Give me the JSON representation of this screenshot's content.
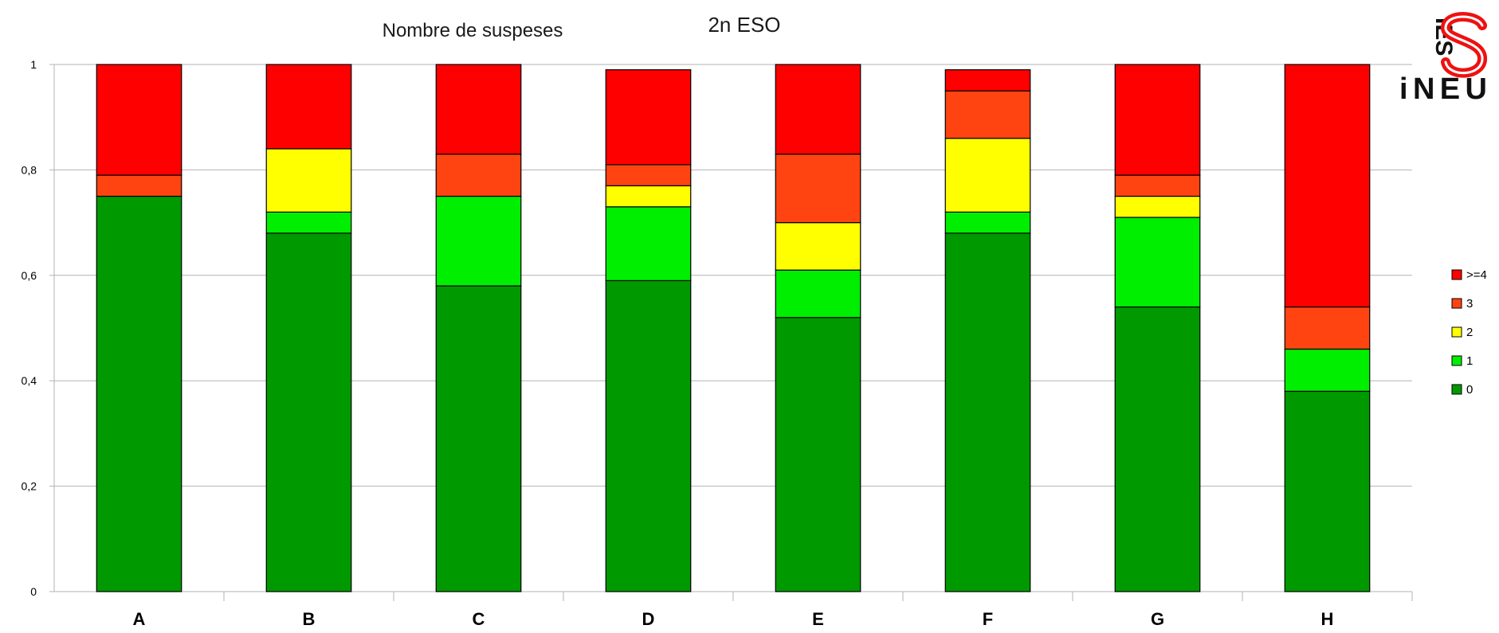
{
  "chart_data": {
    "type": "bar",
    "stacked": true,
    "title": "Nombre de suspeses",
    "subtitle": "2n ESO",
    "categories": [
      "A",
      "B",
      "C",
      "D",
      "E",
      "F",
      "G",
      "H"
    ],
    "series": [
      {
        "name": "0",
        "color": "#009900",
        "values": [
          0.75,
          0.68,
          0.58,
          0.59,
          0.52,
          0.68,
          0.54,
          0.38
        ]
      },
      {
        "name": "1",
        "color": "#00ee00",
        "values": [
          0.0,
          0.04,
          0.17,
          0.14,
          0.09,
          0.04,
          0.17,
          0.08
        ]
      },
      {
        "name": "2",
        "color": "#ffff00",
        "values": [
          0.0,
          0.12,
          0.0,
          0.04,
          0.09,
          0.14,
          0.04,
          0.0
        ]
      },
      {
        "name": "3",
        "color": "#ff4411",
        "values": [
          0.04,
          0.0,
          0.08,
          0.04,
          0.13,
          0.09,
          0.04,
          0.08
        ]
      },
      {
        "name": ">=4",
        "color": "#ff0000",
        "values": [
          0.21,
          0.16,
          0.17,
          0.18,
          0.17,
          0.04,
          0.21,
          0.46
        ]
      }
    ],
    "ylim": [
      0,
      1
    ],
    "yticks": [
      "0",
      "0,2",
      "0,4",
      "0,6",
      "0,8",
      "1"
    ],
    "grid": true,
    "legend_position": "right",
    "legend_order": [
      ">=4",
      "3",
      "2",
      "1",
      "0"
    ]
  },
  "logo": {
    "top_text": "IES",
    "bottom_text": "iNEU",
    "letter": "S",
    "color": "#ee1111"
  }
}
